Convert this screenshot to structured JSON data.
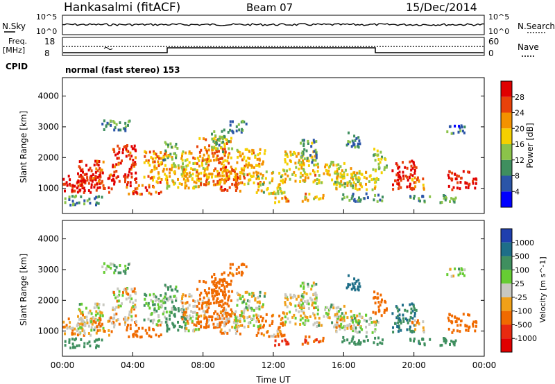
{
  "header": {
    "station": "Hankasalmi (fitACF)",
    "beam": "Beam 07",
    "date": "15/Dec/2014"
  },
  "top_panels": {
    "nsky_label": "N.Sky",
    "nsky_ticks": [
      "10^5",
      "10^0"
    ],
    "nsearch_label": "N.Search",
    "nsearch_ticks": [
      "10^5",
      "10^0"
    ],
    "freq_label_1": "Freq.",
    "freq_label_2": "[MHz]",
    "freq_ticks": [
      "18",
      "8"
    ],
    "nave_label": "Nave",
    "nave_ticks": [
      "60",
      "0"
    ],
    "cpid_label": "CPID",
    "cpid_value": "normal (fast stereo) 153"
  },
  "chart_data": [
    {
      "type": "heatmap",
      "quantity": "Power",
      "ylabel": "Slant Range [km]",
      "y_ticks": [
        1000,
        2000,
        3000,
        4000
      ],
      "ylim": [
        180,
        4600
      ],
      "colorbar_label": "Power [dB]",
      "colorbar_ticks": [
        4,
        8,
        12,
        16,
        20,
        24,
        28
      ],
      "colorbar_range": [
        0,
        32
      ],
      "colormap": [
        "#0000ff",
        "#2b55a8",
        "#3f8f5f",
        "#8bc34a",
        "#f5d000",
        "#f39200",
        "#e8420a",
        "#e00000"
      ]
    },
    {
      "type": "heatmap",
      "quantity": "Velocity",
      "ylabel": "Slant Range [km]",
      "y_ticks": [
        1000,
        2000,
        3000,
        4000
      ],
      "ylim": [
        180,
        4600
      ],
      "colorbar_label": "Velocity [m s^-1]",
      "colorbar_ticks": [
        "1000",
        "500",
        "100",
        "25",
        "-25",
        "-100",
        "-500",
        "-1000"
      ],
      "colormap": [
        "#1f3fae",
        "#1e6e88",
        "#3f8f5f",
        "#66cc33",
        "#c8c8c0",
        "#f0a018",
        "#f06a00",
        "#e82a10",
        "#e00000"
      ]
    }
  ],
  "time_axis": {
    "label": "Time UT",
    "ticks": [
      "00:00",
      "04:00",
      "08:00",
      "12:00",
      "16:00",
      "20:00",
      "00:00"
    ]
  },
  "colors": {
    "axis": "#000000",
    "background": "#ffffff"
  }
}
